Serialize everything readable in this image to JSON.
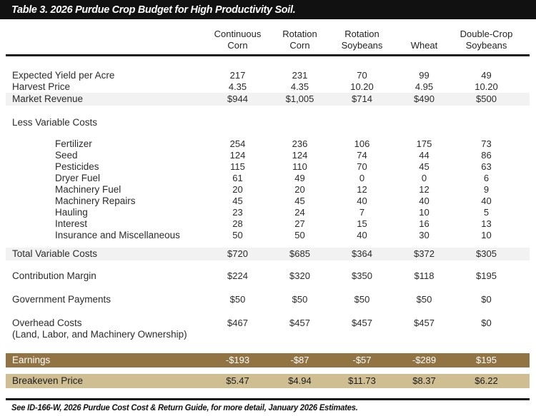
{
  "title": "Table 3. 2026 Purdue Crop Budget for High Productivity Soil.",
  "columns": [
    "Continuous Corn",
    "Rotation Corn",
    "Rotation Soybeans",
    "Wheat",
    "Double-Crop Soybeans"
  ],
  "footnote": "See ID-166-W, 2026 Purdue Cost Cost & Return Guide, for more detail, January 2026 Estimates.",
  "colors": {
    "title_bar": "#111111",
    "shaded_row": "#f2f2f2",
    "earnings_row": "#927343",
    "breakeven_row": "#cebe92"
  },
  "table": {
    "rows": [
      {
        "label": "Expected Yield per Acre",
        "indent": false,
        "style": "plain",
        "values": [
          "217",
          "231",
          "70",
          "99",
          "49"
        ]
      },
      {
        "label": "Harvest Price",
        "indent": false,
        "style": "plain",
        "values": [
          "4.35",
          "4.35",
          "10.20",
          "4.95",
          "10.20"
        ]
      },
      {
        "label": "Market Revenue",
        "indent": false,
        "style": "shaded",
        "values": [
          "$944",
          "$1,005",
          "$714",
          "$490",
          "$500"
        ]
      },
      {
        "type": "spacer",
        "h": 16
      },
      {
        "label": "Less Variable Costs",
        "indent": false,
        "style": "plain",
        "values": []
      },
      {
        "type": "spacer",
        "h": 14
      },
      {
        "label": "Fertilizer",
        "indent": true,
        "style": "plain",
        "values": [
          "254",
          "236",
          "106",
          "175",
          "73"
        ]
      },
      {
        "label": "Seed",
        "indent": true,
        "style": "plain",
        "values": [
          "124",
          "124",
          "74",
          "44",
          "86"
        ]
      },
      {
        "label": "Pesticides",
        "indent": true,
        "style": "plain",
        "values": [
          "115",
          "110",
          "70",
          "45",
          "63"
        ]
      },
      {
        "label": "Dryer Fuel",
        "indent": true,
        "style": "plain",
        "values": [
          "61",
          "49",
          "0",
          "0",
          "6"
        ]
      },
      {
        "label": "Machinery Fuel",
        "indent": true,
        "style": "plain",
        "values": [
          "20",
          "20",
          "12",
          "12",
          "9"
        ]
      },
      {
        "label": "Machinery Repairs",
        "indent": true,
        "style": "plain",
        "values": [
          "45",
          "45",
          "40",
          "40",
          "40"
        ]
      },
      {
        "label": "Hauling",
        "indent": true,
        "style": "plain",
        "values": [
          "23",
          "24",
          "7",
          "10",
          "5"
        ]
      },
      {
        "label": "Interest",
        "indent": true,
        "style": "plain",
        "values": [
          "28",
          "27",
          "15",
          "16",
          "13"
        ]
      },
      {
        "label": "Insurance and Miscellaneous",
        "indent": true,
        "style": "plain",
        "values": [
          "50",
          "50",
          "40",
          "30",
          "10"
        ]
      },
      {
        "type": "spacer",
        "h": 9
      },
      {
        "label": "Total Variable Costs",
        "indent": false,
        "style": "shaded",
        "values": [
          "$720",
          "$685",
          "$364",
          "$372",
          "$305"
        ]
      },
      {
        "type": "spacer",
        "h": 14
      },
      {
        "label": "Contribution Margin",
        "indent": false,
        "style": "plain",
        "values": [
          "$224",
          "$320",
          "$350",
          "$118",
          "$195"
        ]
      },
      {
        "type": "spacer",
        "h": 17
      },
      {
        "label": "Government Payments",
        "indent": false,
        "style": "plain",
        "values": [
          "$50",
          "$50",
          "$50",
          "$50",
          "$0"
        ]
      },
      {
        "type": "spacer",
        "h": 17
      },
      {
        "label": "Overhead Costs",
        "sublabel": "(Land, Labor, and Machinery Ownership)",
        "indent": false,
        "style": "plain",
        "values": [
          "$467",
          "$457",
          "$457",
          "$457",
          "$0"
        ]
      },
      {
        "type": "spacer",
        "h": 18
      },
      {
        "label": "Earnings",
        "indent": false,
        "style": "gold",
        "values": [
          "-$193",
          "-$87",
          "-$57",
          "-$289",
          "$195"
        ]
      },
      {
        "type": "spacer",
        "h": 9
      },
      {
        "label": "Breakeven Price",
        "indent": false,
        "style": "tan",
        "values": [
          "$5.47",
          "$4.94",
          "$11.73",
          "$8.37",
          "$6.22"
        ]
      }
    ]
  }
}
